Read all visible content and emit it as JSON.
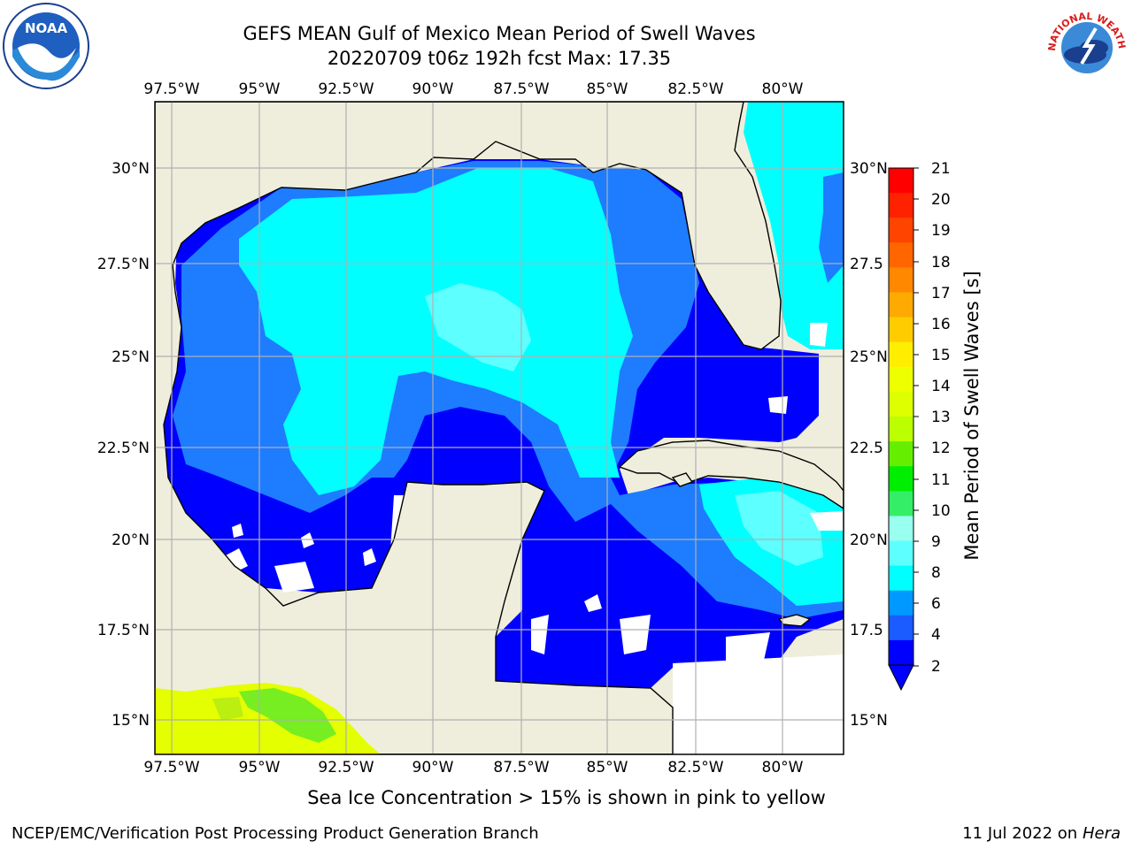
{
  "title": {
    "line1": "GEFS MEAN Gulf of Mexico Mean Period of Swell Waves",
    "line2": "20220709 t06z 192h fcst   Max: 17.35"
  },
  "map": {
    "lon_labels": [
      "97.5°W",
      "95°W",
      "92.5°W",
      "90°W",
      "87.5°W",
      "85°W",
      "82.5°W",
      "80°W"
    ],
    "lat_labels_left": [
      "30°N",
      "27.5°N",
      "25°N",
      "22.5°N",
      "20°N",
      "17.5°N",
      "15°N"
    ],
    "lat_labels_right": [
      "30°N",
      "27.5",
      "25°N",
      "22.5",
      "20°N",
      "17.5",
      "15°N"
    ],
    "ocean_colors": {
      "deep": "#0000ff",
      "mid": "#1e7cff",
      "cyan": "#00ffff",
      "light": "#5effff",
      "land": "#efeedd",
      "ice_yellow": "#e4ff00",
      "ice_green": "#77ee22"
    }
  },
  "colorbar": {
    "label": "Mean Period of Swell Waves [s]",
    "ticks": [
      "21",
      "20",
      "19",
      "18",
      "17",
      "16",
      "15",
      "14",
      "13",
      "12",
      "11",
      "10",
      "9",
      "8",
      "6",
      "4",
      "2"
    ],
    "colors": [
      "#ff0000",
      "#ff2200",
      "#ff4400",
      "#ff6600",
      "#ff8800",
      "#ffaa00",
      "#ffcc00",
      "#ffee00",
      "#eeff00",
      "#ddff00",
      "#bbff00",
      "#66ee00",
      "#00ee00",
      "#33ee66",
      "#99ffee",
      "#5effff",
      "#00ffff",
      "#0099ff",
      "#1a5cff",
      "#0000ff"
    ]
  },
  "note": "Sea Ice Concentration > 15% is shown in pink to yellow",
  "footer": {
    "left": "NCEP/EMC/Verification Post Processing Product Generation Branch",
    "right_prefix": "11 Jul 2022 on ",
    "right_host": "Hera"
  },
  "logos": {
    "noaa": "NOAA",
    "nws_arc": "NATIONAL WEATHER SERVICE"
  }
}
